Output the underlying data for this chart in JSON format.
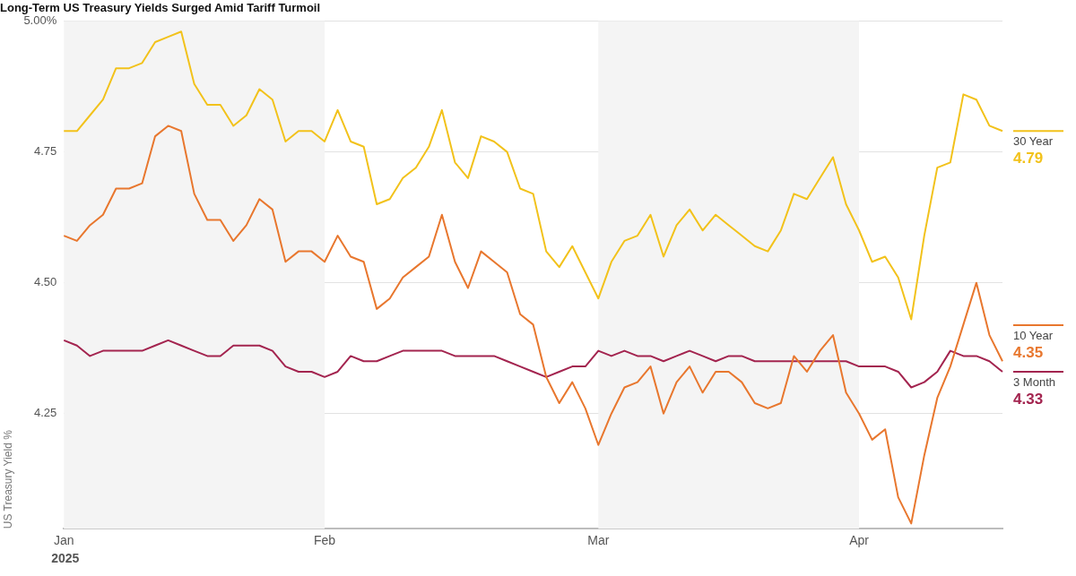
{
  "chart_data": {
    "type": "line",
    "title": "Long-Term US Treasury Yields Surged Amid Tariff Turmoil",
    "ylabel": "US Treasury Yield %",
    "categories": [
      "Jan",
      null,
      null,
      null,
      null,
      null,
      null,
      null,
      null,
      null,
      null,
      null,
      null,
      null,
      null,
      null,
      null,
      null,
      null,
      null,
      "Feb",
      null,
      null,
      null,
      null,
      null,
      null,
      null,
      null,
      null,
      null,
      null,
      null,
      null,
      null,
      null,
      null,
      null,
      null,
      null,
      null,
      "Mar",
      null,
      null,
      null,
      null,
      null,
      null,
      null,
      null,
      null,
      null,
      null,
      null,
      null,
      null,
      null,
      null,
      null,
      null,
      null,
      "Apr",
      null,
      null,
      null,
      null,
      null,
      null,
      null,
      null,
      null,
      null,
      null
    ],
    "series": [
      {
        "name": "30 Year",
        "color": "#f2c21b",
        "values": [
          4.79,
          4.79,
          4.82,
          4.85,
          4.91,
          4.91,
          4.92,
          4.96,
          4.97,
          4.98,
          4.88,
          4.84,
          4.84,
          4.8,
          4.82,
          4.87,
          4.85,
          4.77,
          4.79,
          4.79,
          4.77,
          4.83,
          4.77,
          4.76,
          4.65,
          4.66,
          4.7,
          4.72,
          4.76,
          4.83,
          4.73,
          4.7,
          4.78,
          4.77,
          4.75,
          4.68,
          4.67,
          4.56,
          4.53,
          4.57,
          4.52,
          4.47,
          4.54,
          4.58,
          4.59,
          4.63,
          4.55,
          4.61,
          4.64,
          4.6,
          4.63,
          4.61,
          4.59,
          4.57,
          4.56,
          4.6,
          4.67,
          4.66,
          4.7,
          4.74,
          4.65,
          4.6,
          4.54,
          4.55,
          4.51,
          4.43,
          4.59,
          4.72,
          4.73,
          4.86,
          4.85,
          4.8,
          4.79
        ],
        "value_labels": [
          null,
          null,
          null,
          null,
          null,
          null,
          null,
          null,
          null,
          null,
          null,
          null,
          null,
          null,
          null,
          null,
          null,
          null,
          null,
          null,
          null,
          null,
          null,
          null,
          null,
          null,
          null,
          null,
          null,
          null,
          null,
          null,
          null,
          null,
          null,
          null,
          null,
          null,
          null,
          null,
          null,
          null,
          null,
          null,
          null,
          null,
          null,
          null,
          null,
          null,
          null,
          null,
          null,
          null,
          null,
          null,
          null,
          null,
          null,
          null,
          null,
          null,
          null,
          null,
          null,
          null,
          null,
          null,
          null,
          null,
          null,
          null,
          "4.79"
        ]
      },
      {
        "name": "10 Year",
        "color": "#e8772e",
        "values": [
          4.59,
          4.58,
          4.61,
          4.63,
          4.68,
          4.68,
          4.69,
          4.78,
          4.8,
          4.79,
          4.67,
          4.62,
          4.62,
          4.58,
          4.61,
          4.66,
          4.64,
          4.54,
          4.56,
          4.56,
          4.54,
          4.59,
          4.55,
          4.54,
          4.45,
          4.47,
          4.51,
          4.53,
          4.55,
          4.63,
          4.54,
          4.49,
          4.56,
          4.54,
          4.52,
          4.44,
          4.42,
          4.32,
          4.27,
          4.31,
          4.26,
          4.19,
          4.25,
          4.3,
          4.31,
          4.34,
          4.25,
          4.31,
          4.34,
          4.29,
          4.33,
          4.33,
          4.31,
          4.27,
          4.26,
          4.27,
          4.36,
          4.33,
          4.37,
          4.4,
          4.29,
          4.25,
          4.2,
          4.22,
          4.09,
          4.04,
          4.17,
          4.28,
          4.34,
          4.42,
          4.5,
          4.4,
          4.35
        ],
        "value_labels": [
          null,
          null,
          null,
          null,
          null,
          null,
          null,
          null,
          null,
          null,
          null,
          null,
          null,
          null,
          null,
          null,
          null,
          null,
          null,
          null,
          null,
          null,
          null,
          null,
          null,
          null,
          null,
          null,
          null,
          null,
          null,
          null,
          null,
          null,
          null,
          null,
          null,
          null,
          null,
          null,
          null,
          null,
          null,
          null,
          null,
          null,
          null,
          null,
          null,
          null,
          null,
          null,
          null,
          null,
          null,
          null,
          null,
          null,
          null,
          null,
          null,
          null,
          null,
          null,
          null,
          null,
          null,
          null,
          null,
          null,
          null,
          null,
          "4.35"
        ]
      },
      {
        "name": "3 Month",
        "color": "#a3244f",
        "values": [
          4.39,
          4.38,
          4.36,
          4.37,
          4.37,
          4.37,
          4.37,
          4.38,
          4.39,
          4.38,
          4.37,
          4.36,
          4.36,
          4.38,
          4.38,
          4.38,
          4.37,
          4.34,
          4.33,
          4.33,
          4.32,
          4.33,
          4.36,
          4.35,
          4.35,
          4.36,
          4.37,
          4.37,
          4.37,
          4.37,
          4.36,
          4.36,
          4.36,
          4.36,
          4.35,
          4.34,
          4.33,
          4.32,
          4.33,
          4.34,
          4.34,
          4.37,
          4.36,
          4.37,
          4.36,
          4.36,
          4.35,
          4.36,
          4.37,
          4.36,
          4.35,
          4.36,
          4.36,
          4.35,
          4.35,
          4.35,
          4.35,
          4.35,
          4.35,
          4.35,
          4.35,
          4.34,
          4.34,
          4.34,
          4.33,
          4.3,
          4.31,
          4.33,
          4.37,
          4.36,
          4.36,
          4.35,
          4.33
        ],
        "value_labels": [
          null,
          null,
          null,
          null,
          null,
          null,
          null,
          null,
          null,
          null,
          null,
          null,
          null,
          null,
          null,
          null,
          null,
          null,
          null,
          null,
          null,
          null,
          null,
          null,
          null,
          null,
          null,
          null,
          null,
          null,
          null,
          null,
          null,
          null,
          null,
          null,
          null,
          null,
          null,
          null,
          null,
          null,
          null,
          null,
          null,
          null,
          null,
          null,
          null,
          null,
          null,
          null,
          null,
          null,
          null,
          null,
          null,
          null,
          null,
          null,
          null,
          null,
          null,
          null,
          null,
          null,
          null,
          null,
          null,
          null,
          null,
          null,
          "4.33"
        ]
      }
    ],
    "ylim": [
      4.03,
      5.0
    ],
    "yticks": [
      {
        "value": 4.25,
        "label": "4.25"
      },
      {
        "value": 4.5,
        "label": "4.50"
      },
      {
        "value": 4.75,
        "label": "4.75"
      },
      {
        "value": 5.0,
        "label": "5.00%"
      }
    ],
    "grid": "y",
    "legend": "right",
    "bands": [
      {
        "axis": "x",
        "from": "Jan",
        "to": "Feb",
        "color": "#f4f4f4"
      },
      {
        "axis": "x",
        "from": "Mar",
        "to": "Apr",
        "color": "#f4f4f4"
      }
    ],
    "annotations": [
      "2025"
    ]
  }
}
